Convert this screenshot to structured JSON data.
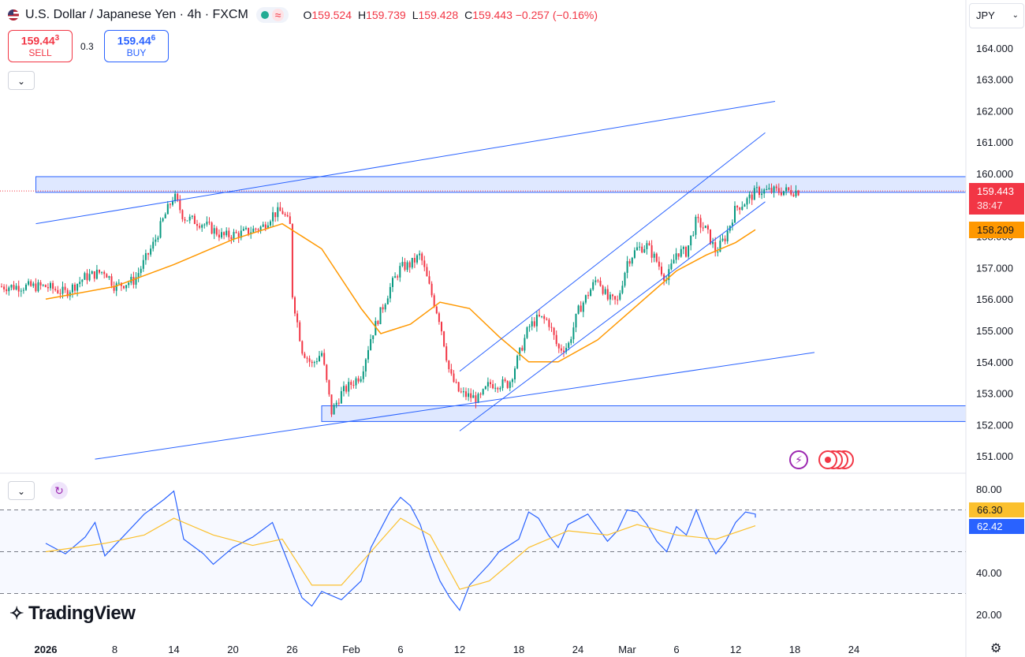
{
  "header": {
    "symbol_title": "U.S. Dollar / Japanese Yen · 4h · FXCM",
    "market_status_icon": "≈",
    "ohlc": [
      {
        "key": "O",
        "value": "159.524"
      },
      {
        "key": "H",
        "value": "159.739"
      },
      {
        "key": "L",
        "value": "159.428"
      },
      {
        "key": "C",
        "value": "159.443"
      },
      {
        "key": "",
        "value": "−0.257 (−0.16%)"
      }
    ]
  },
  "trade": {
    "sell_price": "159.44",
    "sell_price_sup": "3",
    "sell_label": "SELL",
    "spread": "0.3",
    "buy_price": "159.44",
    "buy_price_sup": "6",
    "buy_label": "BUY"
  },
  "currency_selector": {
    "value": "JPY"
  },
  "icons": {
    "collapse": "chevron-down-icon",
    "rsi_refresh": "refresh-icon",
    "settings": "gear-icon",
    "alerts": "lightning-icon"
  },
  "price_labels": {
    "last_price": "159.443",
    "countdown": "38:47",
    "ma_value": "158.209",
    "rsi_value": "66.30",
    "rsi_ma_value": "62.42"
  },
  "branding": {
    "logo_text": "TradingView"
  },
  "colors": {
    "up": "#089981",
    "down": "#f23645",
    "ma": "#ff9800",
    "trendline": "#2962ff",
    "rsi": "#2962ff",
    "rsi_ma": "#fbc02d",
    "last_price_bg": "#f23645",
    "ma_label_bg": "#ff9800"
  },
  "chart_data": {
    "type": "candlestick",
    "symbol": "USDJPY",
    "interval": "4h",
    "y_axis": {
      "min": 151.0,
      "max": 164.0,
      "ticks": [
        "164.000",
        "163.000",
        "162.000",
        "161.000",
        "160.000",
        "159.000",
        "158.000",
        "157.000",
        "156.000",
        "155.000",
        "154.000",
        "153.000",
        "152.000",
        "151.000"
      ]
    },
    "x_axis": {
      "ticks": [
        "2026",
        "8",
        "14",
        "20",
        "26",
        "Feb",
        "6",
        "12",
        "18",
        "24",
        "Mar",
        "6",
        "12",
        "18",
        "24"
      ]
    },
    "price_path": [
      {
        "date": "2026-01-01",
        "price": 156.4
      },
      {
        "date": "2026-01-03",
        "price": 156.2
      },
      {
        "date": "2026-01-05",
        "price": 156.7
      },
      {
        "date": "2026-01-07",
        "price": 156.9
      },
      {
        "date": "2026-01-08",
        "price": 156.4
      },
      {
        "date": "2026-01-10",
        "price": 156.6
      },
      {
        "date": "2026-01-12",
        "price": 157.8
      },
      {
        "date": "2026-01-13",
        "price": 158.6
      },
      {
        "date": "2026-01-14",
        "price": 159.3
      },
      {
        "date": "2026-01-15",
        "price": 158.6
      },
      {
        "date": "2026-01-17",
        "price": 158.4
      },
      {
        "date": "2026-01-19",
        "price": 158.0
      },
      {
        "date": "2026-01-21",
        "price": 158.1
      },
      {
        "date": "2026-01-23",
        "price": 158.3
      },
      {
        "date": "2026-01-24",
        "price": 158.7
      },
      {
        "date": "2026-01-25",
        "price": 158.8
      },
      {
        "date": "2026-01-26",
        "price": 158.2
      },
      {
        "date": "2026-01-26",
        "price": 156.2
      },
      {
        "date": "2026-01-27",
        "price": 154.4
      },
      {
        "date": "2026-01-28",
        "price": 153.9
      },
      {
        "date": "2026-01-29",
        "price": 154.3
      },
      {
        "date": "2026-01-30",
        "price": 152.4
      },
      {
        "date": "2026-01-31",
        "price": 153.0
      },
      {
        "date": "2026-02-02",
        "price": 153.6
      },
      {
        "date": "2026-02-03",
        "price": 154.8
      },
      {
        "date": "2026-02-05",
        "price": 156.4
      },
      {
        "date": "2026-02-06",
        "price": 157.0
      },
      {
        "date": "2026-02-07",
        "price": 157.1
      },
      {
        "date": "2026-02-08",
        "price": 157.4
      },
      {
        "date": "2026-02-09",
        "price": 156.3
      },
      {
        "date": "2026-02-10",
        "price": 155.3
      },
      {
        "date": "2026-02-11",
        "price": 153.6
      },
      {
        "date": "2026-02-12",
        "price": 153.0
      },
      {
        "date": "2026-02-13",
        "price": 152.9
      },
      {
        "date": "2026-02-14",
        "price": 152.8
      },
      {
        "date": "2026-02-15",
        "price": 153.3
      },
      {
        "date": "2026-02-17",
        "price": 153.3
      },
      {
        "date": "2026-02-18",
        "price": 154.2
      },
      {
        "date": "2026-02-19",
        "price": 155.1
      },
      {
        "date": "2026-02-20",
        "price": 155.4
      },
      {
        "date": "2026-02-21",
        "price": 155.3
      },
      {
        "date": "2026-02-22",
        "price": 154.4
      },
      {
        "date": "2026-02-23",
        "price": 154.5
      },
      {
        "date": "2026-02-24",
        "price": 155.6
      },
      {
        "date": "2026-02-26",
        "price": 156.7
      },
      {
        "date": "2026-02-27",
        "price": 156.0
      },
      {
        "date": "2026-02-28",
        "price": 155.9
      },
      {
        "date": "2026-03-01",
        "price": 157.2
      },
      {
        "date": "2026-03-02",
        "price": 157.6
      },
      {
        "date": "2026-03-03",
        "price": 157.7
      },
      {
        "date": "2026-03-04",
        "price": 157.2
      },
      {
        "date": "2026-03-05",
        "price": 156.6
      },
      {
        "date": "2026-03-06",
        "price": 157.5
      },
      {
        "date": "2026-03-07",
        "price": 157.5
      },
      {
        "date": "2026-03-08",
        "price": 158.5
      },
      {
        "date": "2026-03-09",
        "price": 158.2
      },
      {
        "date": "2026-03-10",
        "price": 157.5
      },
      {
        "date": "2026-03-11",
        "price": 158.0
      },
      {
        "date": "2026-03-12",
        "price": 158.9
      },
      {
        "date": "2026-03-13",
        "price": 159.1
      },
      {
        "date": "2026-03-14",
        "price": 159.4
      },
      {
        "date": "2026-03-14",
        "price": 159.443
      }
    ],
    "moving_average": [
      {
        "date": "2026-01-01",
        "price": 156.0
      },
      {
        "date": "2026-01-08",
        "price": 156.4
      },
      {
        "date": "2026-01-14",
        "price": 157.1
      },
      {
        "date": "2026-01-20",
        "price": 157.9
      },
      {
        "date": "2026-01-25",
        "price": 158.4
      },
      {
        "date": "2026-01-29",
        "price": 157.6
      },
      {
        "date": "2026-02-02",
        "price": 155.7
      },
      {
        "date": "2026-02-04",
        "price": 154.9
      },
      {
        "date": "2026-02-07",
        "price": 155.2
      },
      {
        "date": "2026-02-10",
        "price": 155.9
      },
      {
        "date": "2026-02-13",
        "price": 155.7
      },
      {
        "date": "2026-02-16",
        "price": 154.8
      },
      {
        "date": "2026-02-19",
        "price": 154.0
      },
      {
        "date": "2026-02-22",
        "price": 154.0
      },
      {
        "date": "2026-02-26",
        "price": 154.7
      },
      {
        "date": "2026-03-02",
        "price": 155.8
      },
      {
        "date": "2026-03-06",
        "price": 156.9
      },
      {
        "date": "2026-03-09",
        "price": 157.4
      },
      {
        "date": "2026-03-12",
        "price": 157.8
      },
      {
        "date": "2026-03-14",
        "price": 158.209
      }
    ],
    "zones": [
      {
        "low": 159.4,
        "high": 159.9,
        "from": "2025-12-31",
        "to": "right-edge"
      },
      {
        "low": 152.1,
        "high": 152.6,
        "from": "2026-01-29",
        "to": "right-edge"
      }
    ],
    "trendlines": [
      {
        "from": {
          "date": "2025-12-31",
          "price": 158.4
        },
        "to": {
          "date": "2026-03-16",
          "price": 162.3
        }
      },
      {
        "from": {
          "date": "2026-01-06",
          "price": 150.9
        },
        "to": {
          "date": "2026-03-20",
          "price": 154.3
        }
      },
      {
        "from": {
          "date": "2026-02-12",
          "price": 153.7
        },
        "to": {
          "date": "2026-03-15",
          "price": 161.3
        }
      },
      {
        "from": {
          "date": "2026-02-12",
          "price": 151.8
        },
        "to": {
          "date": "2026-03-15",
          "price": 159.1
        }
      }
    ],
    "rsi": {
      "y_axis": {
        "ticks": [
          "80.00",
          "40.00",
          "20.00"
        ]
      },
      "levels": [
        70,
        50,
        30
      ],
      "value": 66.3,
      "ma_value": 62.42,
      "series": [
        {
          "date": "2026-01-01",
          "value": 54
        },
        {
          "date": "2026-01-03",
          "value": 49
        },
        {
          "date": "2026-01-05",
          "value": 57
        },
        {
          "date": "2026-01-06",
          "value": 64
        },
        {
          "date": "2026-01-07",
          "value": 48
        },
        {
          "date": "2026-01-09",
          "value": 58
        },
        {
          "date": "2026-01-11",
          "value": 68
        },
        {
          "date": "2026-01-13",
          "value": 75
        },
        {
          "date": "2026-01-14",
          "value": 79
        },
        {
          "date": "2026-01-15",
          "value": 56
        },
        {
          "date": "2026-01-17",
          "value": 49
        },
        {
          "date": "2026-01-18",
          "value": 44
        },
        {
          "date": "2026-01-20",
          "value": 52
        },
        {
          "date": "2026-01-22",
          "value": 57
        },
        {
          "date": "2026-01-24",
          "value": 64
        },
        {
          "date": "2026-01-26",
          "value": 40
        },
        {
          "date": "2026-01-27",
          "value": 28
        },
        {
          "date": "2026-01-28",
          "value": 24
        },
        {
          "date": "2026-01-29",
          "value": 31
        },
        {
          "date": "2026-01-31",
          "value": 27
        },
        {
          "date": "2026-02-02",
          "value": 36
        },
        {
          "date": "2026-02-03",
          "value": 52
        },
        {
          "date": "2026-02-05",
          "value": 70
        },
        {
          "date": "2026-02-06",
          "value": 76
        },
        {
          "date": "2026-02-07",
          "value": 72
        },
        {
          "date": "2026-02-08",
          "value": 63
        },
        {
          "date": "2026-02-09",
          "value": 48
        },
        {
          "date": "2026-02-10",
          "value": 36
        },
        {
          "date": "2026-02-11",
          "value": 28
        },
        {
          "date": "2026-02-12",
          "value": 22
        },
        {
          "date": "2026-02-13",
          "value": 34
        },
        {
          "date": "2026-02-15",
          "value": 44
        },
        {
          "date": "2026-02-16",
          "value": 50
        },
        {
          "date": "2026-02-18",
          "value": 56
        },
        {
          "date": "2026-02-19",
          "value": 69
        },
        {
          "date": "2026-02-20",
          "value": 66
        },
        {
          "date": "2026-02-21",
          "value": 58
        },
        {
          "date": "2026-02-22",
          "value": 52
        },
        {
          "date": "2026-02-23",
          "value": 63
        },
        {
          "date": "2026-02-25",
          "value": 68
        },
        {
          "date": "2026-02-27",
          "value": 55
        },
        {
          "date": "2026-02-28",
          "value": 60
        },
        {
          "date": "2026-03-01",
          "value": 70
        },
        {
          "date": "2026-03-02",
          "value": 69
        },
        {
          "date": "2026-03-03",
          "value": 63
        },
        {
          "date": "2026-03-04",
          "value": 55
        },
        {
          "date": "2026-03-05",
          "value": 50
        },
        {
          "date": "2026-03-06",
          "value": 62
        },
        {
          "date": "2026-03-07",
          "value": 58
        },
        {
          "date": "2026-03-08",
          "value": 70
        },
        {
          "date": "2026-03-09",
          "value": 58
        },
        {
          "date": "2026-03-10",
          "value": 49
        },
        {
          "date": "2026-03-11",
          "value": 55
        },
        {
          "date": "2026-03-12",
          "value": 64
        },
        {
          "date": "2026-03-13",
          "value": 69
        },
        {
          "date": "2026-03-14",
          "value": 68
        },
        {
          "date": "2026-03-14",
          "value": 66.3
        }
      ],
      "ma_series": [
        {
          "date": "2026-01-01",
          "value": 50
        },
        {
          "date": "2026-01-07",
          "value": 54
        },
        {
          "date": "2026-01-11",
          "value": 58
        },
        {
          "date": "2026-01-14",
          "value": 66
        },
        {
          "date": "2026-01-18",
          "value": 58
        },
        {
          "date": "2026-01-22",
          "value": 53
        },
        {
          "date": "2026-01-25",
          "value": 56
        },
        {
          "date": "2026-01-28",
          "value": 34
        },
        {
          "date": "2026-01-31",
          "value": 34
        },
        {
          "date": "2026-02-03",
          "value": 50
        },
        {
          "date": "2026-02-06",
          "value": 66
        },
        {
          "date": "2026-02-09",
          "value": 58
        },
        {
          "date": "2026-02-12",
          "value": 32
        },
        {
          "date": "2026-02-15",
          "value": 36
        },
        {
          "date": "2026-02-19",
          "value": 52
        },
        {
          "date": "2026-02-23",
          "value": 60
        },
        {
          "date": "2026-02-27",
          "value": 58
        },
        {
          "date": "2026-03-02",
          "value": 63
        },
        {
          "date": "2026-03-06",
          "value": 58
        },
        {
          "date": "2026-03-10",
          "value": 56
        },
        {
          "date": "2026-03-14",
          "value": 62.42
        }
      ]
    }
  }
}
